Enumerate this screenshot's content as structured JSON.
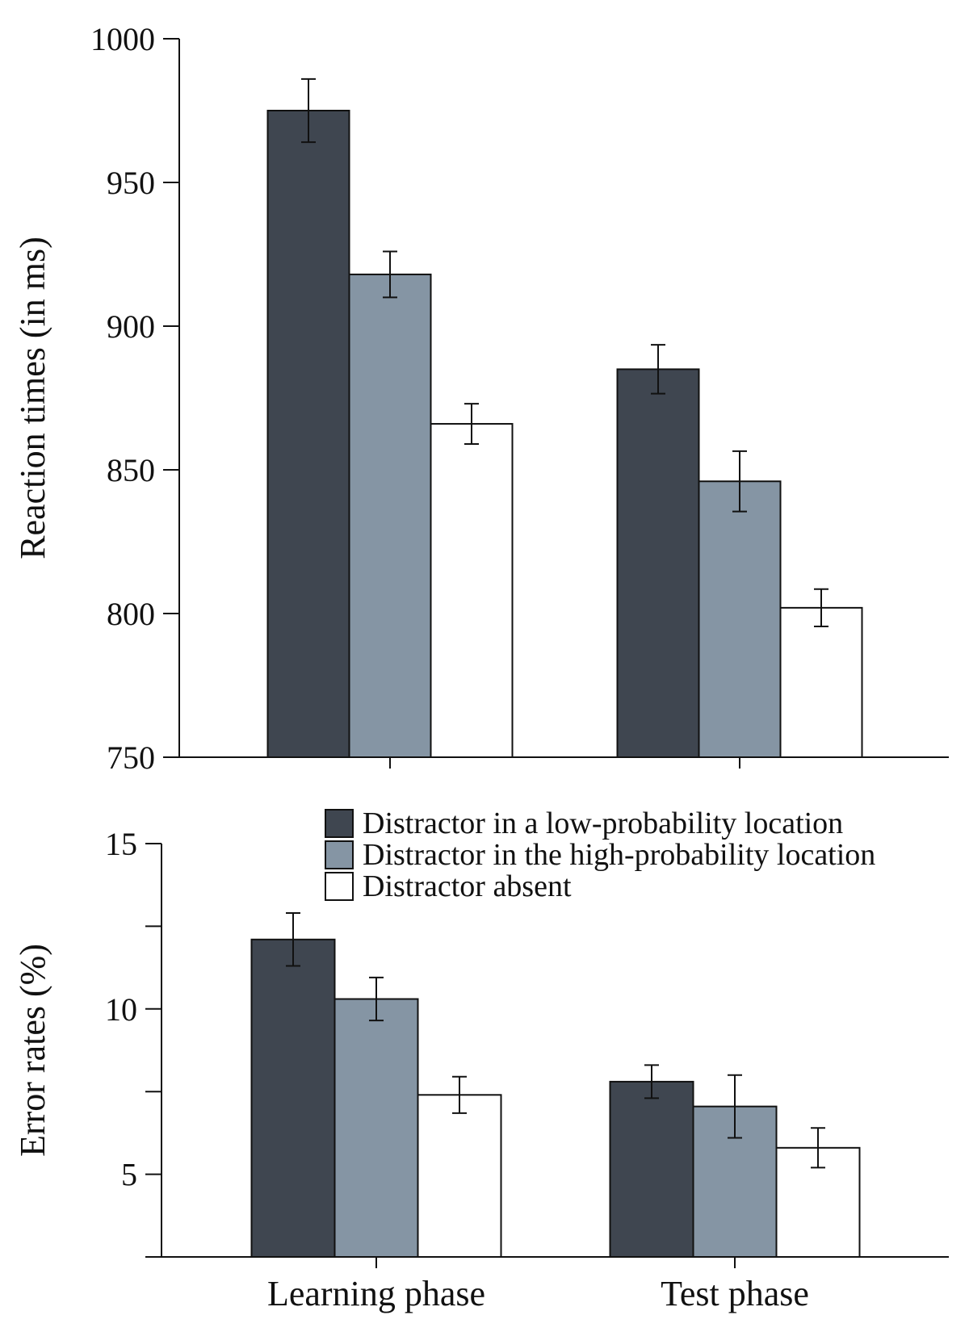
{
  "chart_data": [
    {
      "type": "bar",
      "ylabel": "Reaction times (in ms)",
      "ylim": [
        750,
        1000
      ],
      "yticks": [
        750,
        800,
        850,
        900,
        950,
        1000
      ],
      "yticks_labeled": [
        "750",
        "800",
        "850",
        "900",
        "950",
        "1000"
      ],
      "categories": [
        "Learning phase",
        "Test phase"
      ],
      "series": [
        {
          "name": "Distractor in a low-probability location",
          "values": [
            975,
            885
          ],
          "errors": [
            11,
            8.5
          ]
        },
        {
          "name": "Distractor in the high-probability location",
          "values": [
            918,
            846
          ],
          "errors": [
            8,
            10.5
          ]
        },
        {
          "name": "Distractor absent",
          "values": [
            866,
            802
          ],
          "errors": [
            7,
            6.5
          ]
        }
      ]
    },
    {
      "type": "bar",
      "ylabel": "Error rates (%)",
      "ylim": [
        2.5,
        15
      ],
      "yticks": [
        2.5,
        5,
        7.5,
        10,
        12.5,
        15
      ],
      "yticks_labeled": [
        "",
        "5",
        "",
        "10",
        "",
        "15"
      ],
      "categories": [
        "Learning phase",
        "Test phase"
      ],
      "series": [
        {
          "name": "Distractor in a low-probability location",
          "values": [
            12.1,
            7.8
          ],
          "errors": [
            0.8,
            0.5
          ]
        },
        {
          "name": "Distractor in the high-probability location",
          "values": [
            10.3,
            7.05
          ],
          "errors": [
            0.65,
            0.95
          ]
        },
        {
          "name": "Distractor absent",
          "values": [
            7.4,
            5.8
          ],
          "errors": [
            0.55,
            0.6
          ]
        }
      ]
    }
  ],
  "legend": {
    "placement": "top-right of lower panel",
    "items": [
      {
        "label": "Distractor in a low-probability location",
        "color": "#3f4650"
      },
      {
        "label": "Distractor in the high-probability location",
        "color": "#8595a4"
      },
      {
        "label": "Distractor absent",
        "color": "#ffffff"
      }
    ]
  },
  "colors": {
    "axis": "#111111",
    "low": "#3f4650",
    "high": "#8595a4",
    "absent": "#ffffff"
  }
}
